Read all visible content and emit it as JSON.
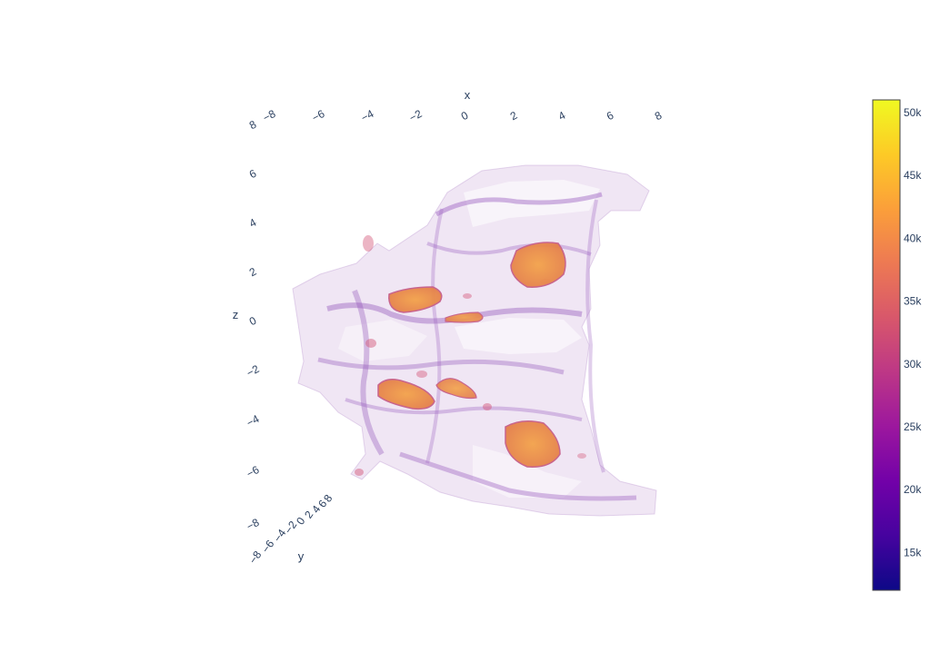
{
  "chart_data": {
    "type": "volume",
    "colorscale": "plasma",
    "axes": {
      "x": {
        "title": "x",
        "range": [
          -8,
          8
        ],
        "ticks": [
          "−8",
          "−6",
          "−4",
          "−2",
          "0",
          "2",
          "4",
          "6",
          "8"
        ]
      },
      "y": {
        "title": "y",
        "range": [
          -8,
          8
        ],
        "ticks": [
          "−8",
          "−6",
          "−4",
          "−2",
          "0",
          "2",
          "4",
          "6",
          "8"
        ]
      },
      "z": {
        "title": "z",
        "range": [
          -8,
          8
        ],
        "ticks": [
          "−8",
          "−6",
          "−4",
          "−2",
          "0",
          "2",
          "4",
          "6",
          "8"
        ]
      }
    },
    "colorbar": {
      "range": [
        12000,
        51000
      ],
      "ticks": [
        {
          "value": 15000,
          "label": "15k"
        },
        {
          "value": 20000,
          "label": "20k"
        },
        {
          "value": 25000,
          "label": "25k"
        },
        {
          "value": 30000,
          "label": "30k"
        },
        {
          "value": 35000,
          "label": "35k"
        },
        {
          "value": 40000,
          "label": "40k"
        },
        {
          "value": 45000,
          "label": "45k"
        },
        {
          "value": 50000,
          "label": "50k"
        }
      ],
      "colors": [
        "#0d0887",
        "#46039f",
        "#7201a8",
        "#9c179e",
        "#bd3786",
        "#d8576b",
        "#ed7953",
        "#fb9f3a",
        "#fdca26",
        "#f0f921"
      ]
    },
    "grid": false,
    "legend": "none"
  }
}
